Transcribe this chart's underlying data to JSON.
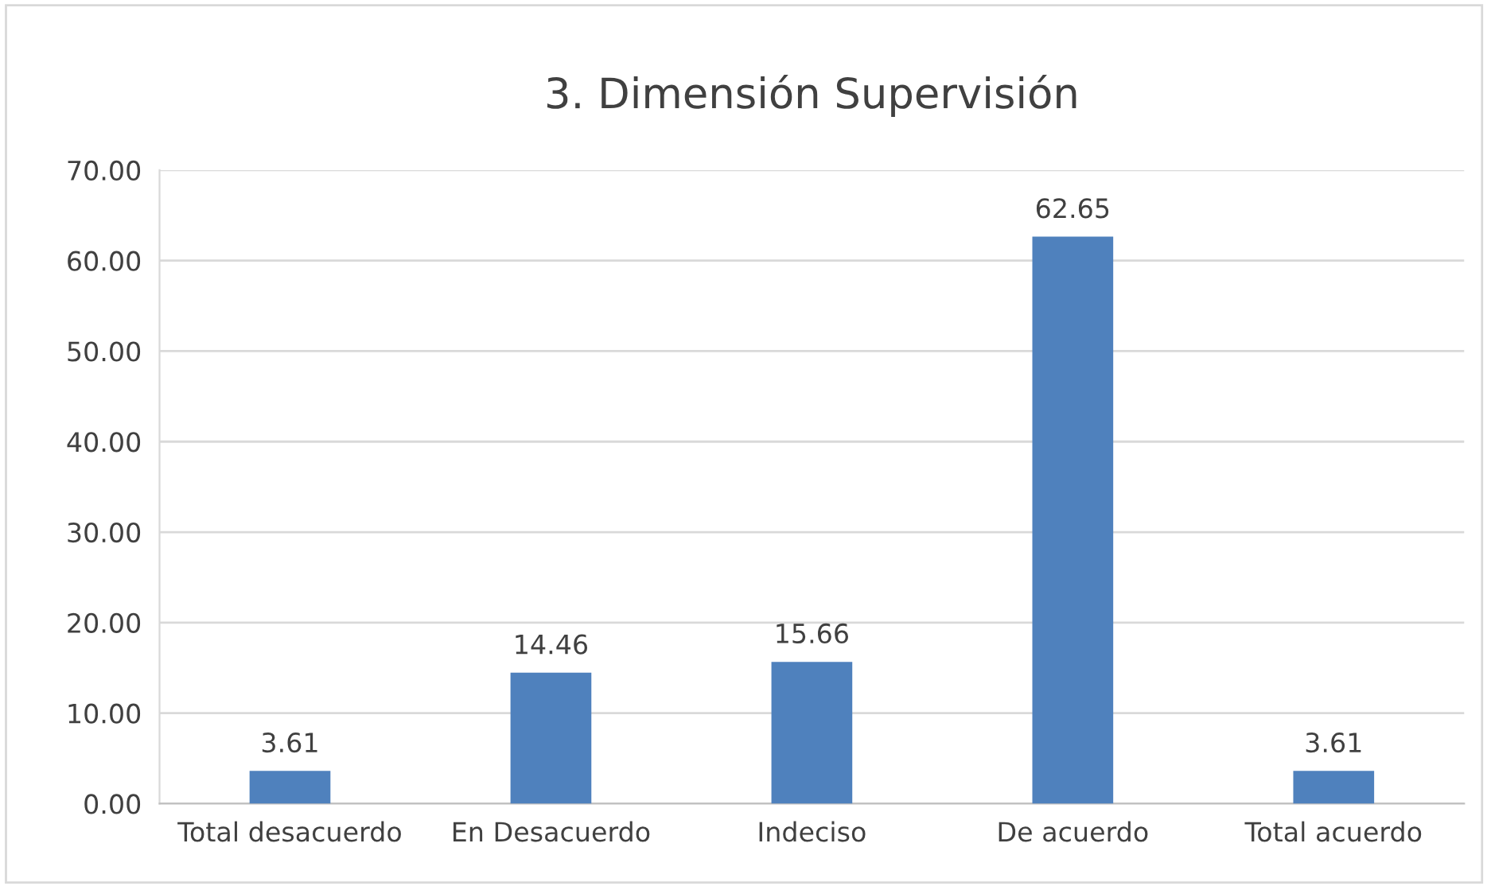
{
  "chart_data": {
    "type": "bar",
    "title": "3. Dimensión Supervisión",
    "categories": [
      "Total desacuerdo",
      "En Desacuerdo",
      "Indeciso",
      "De acuerdo",
      "Total acuerdo"
    ],
    "values": [
      3.61,
      14.46,
      15.66,
      62.65,
      3.61
    ],
    "color": "#4f81bd",
    "ylim": [
      0,
      70
    ],
    "yticks": [
      {
        "value": 0,
        "label": "0.00"
      },
      {
        "value": 10,
        "label": "10.00"
      },
      {
        "value": 20,
        "label": "20.00"
      },
      {
        "value": 30,
        "label": "30.00"
      },
      {
        "value": 40,
        "label": "40.00"
      },
      {
        "value": 50,
        "label": "50.00"
      },
      {
        "value": 60,
        "label": "60.00"
      },
      {
        "value": 70,
        "label": "70.00"
      }
    ],
    "grid": "y",
    "data_labels": true
  }
}
